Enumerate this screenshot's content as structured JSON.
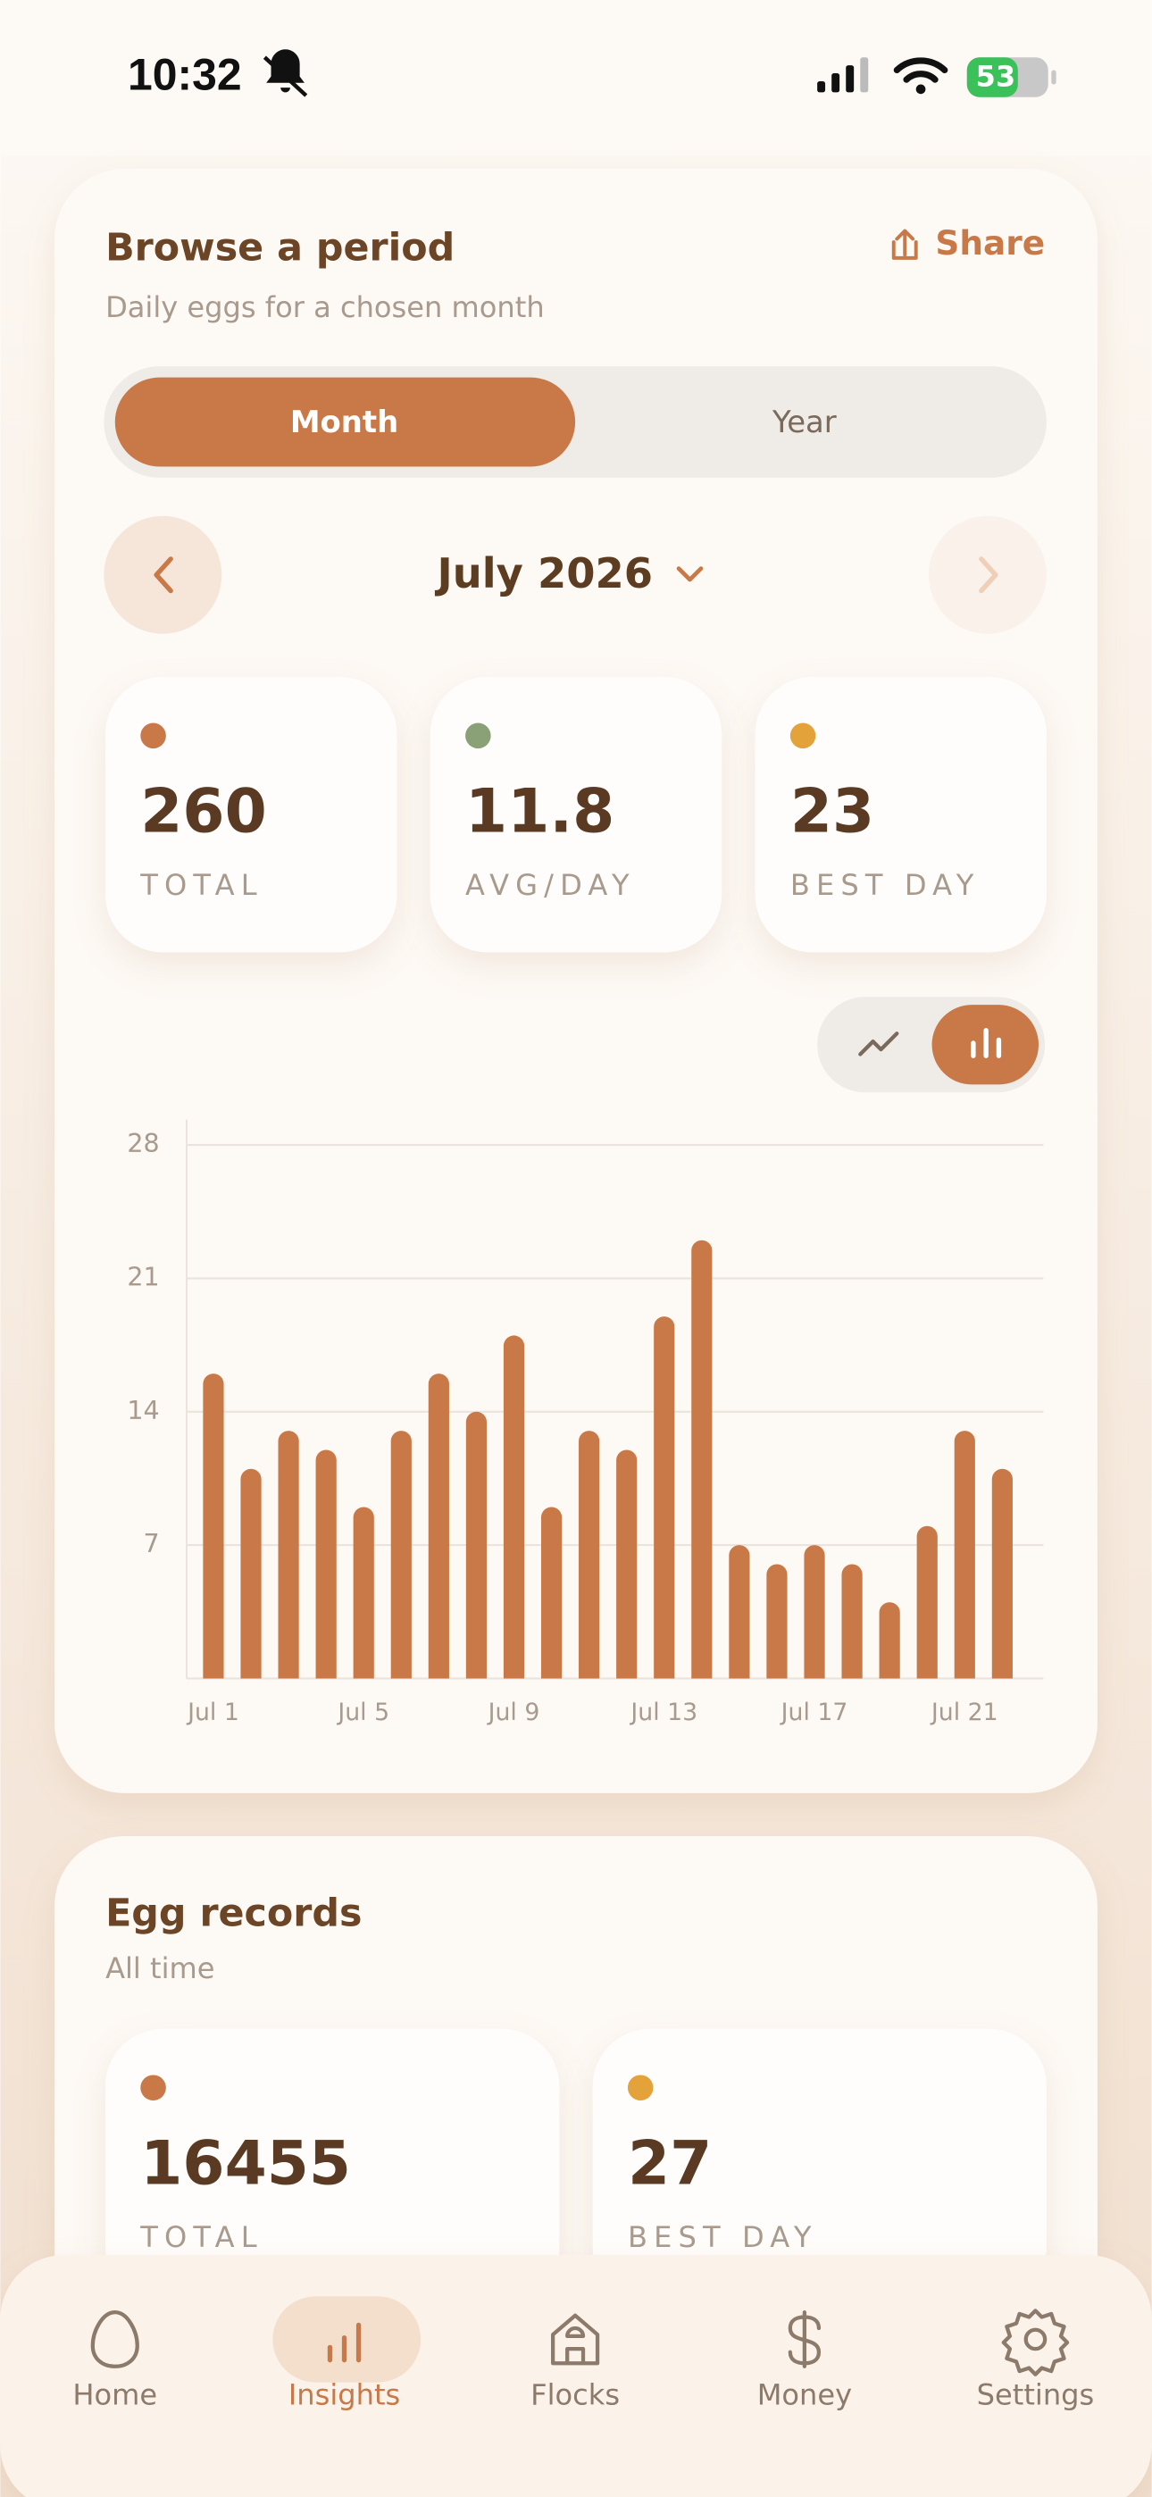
{
  "status_bar": {
    "time": "10:32",
    "battery": "53"
  },
  "period_card": {
    "title": "Browse a period",
    "subtitle": "Daily eggs for a chosen month",
    "share": "Share",
    "tabs": [
      "Month",
      "Year"
    ],
    "period": "July 2026",
    "stats": [
      {
        "value": 260,
        "label": "TOTAL",
        "color": "#c87947"
      },
      {
        "value": 11.8,
        "label": "AVG/DAY",
        "color": "#8aa077"
      },
      {
        "value": 23,
        "label": "BEST DAY",
        "color": "#e3a33a"
      }
    ]
  },
  "chart_data": {
    "type": "bar",
    "categories": [
      "Jul 1",
      null,
      null,
      null,
      "Jul 5",
      null,
      null,
      null,
      "Jul 9",
      null,
      null,
      null,
      "Jul 13",
      null,
      null,
      null,
      "Jul 17",
      null,
      null,
      null,
      "Jul 21",
      null
    ],
    "values": [
      16,
      11,
      13,
      12,
      9,
      13,
      16,
      14,
      18,
      9,
      13,
      12,
      19,
      23,
      7,
      6,
      7,
      6,
      4,
      8,
      13,
      11
    ],
    "color": "#c87947",
    "ylim": [
      0,
      28
    ],
    "yticks": [
      7,
      14,
      21,
      28
    ],
    "grid": true
  },
  "records_card": {
    "title": "Egg records",
    "subtitle": "All time",
    "stats": [
      {
        "value": 16455,
        "label": "TOTAL",
        "color": "#c87947"
      },
      {
        "value": 27,
        "label": "BEST DAY",
        "color": "#e3a33a"
      }
    ]
  },
  "nav": [
    "Home",
    "Insights",
    "Flocks",
    "Money",
    "Settings"
  ]
}
